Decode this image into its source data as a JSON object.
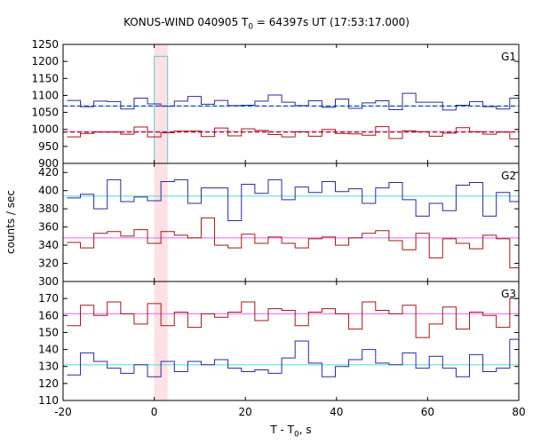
{
  "chart_data": {
    "type": "line",
    "title": {
      "prefix": "KONUS-WIND 040905 T",
      "sub": "0",
      "suffix": " = 64397s UT (17:53:17.000)"
    },
    "xlabel": {
      "prefix": "T - T",
      "sub": "0",
      "suffix": ", s"
    },
    "ylabel": "counts / sec",
    "xlim": [
      -20,
      80
    ],
    "x_ticks": [
      "-20",
      "0",
      "20",
      "40",
      "60",
      "80"
    ],
    "x_tick_values": [
      -20,
      0,
      20,
      40,
      60,
      80
    ],
    "shaded_interval": [
      0,
      2.944
    ],
    "bin_width": 2.944,
    "bin_start": -19.136,
    "colors": {
      "blue": "#2a2aa0",
      "red": "#a01818",
      "cyan": "#66dddd",
      "pink": "#f080f0",
      "shade": "#ffe0e4"
    },
    "panels": [
      {
        "label": "G1",
        "ylim": [
          900,
          1250
        ],
        "y_ticks": [
          900,
          950,
          1000,
          1050,
          1100,
          1150,
          1200,
          1250
        ],
        "y_tick_labels": [
          "900",
          "950",
          "1000",
          "1050",
          "1100",
          "1150",
          "1200",
          "1250"
        ],
        "series": [
          {
            "name": "G1 upper",
            "color": "#2a2aa0",
            "style": "step",
            "values": [
              1085,
              1067,
              1083,
              1082,
              1060,
              1092,
              1075,
              1068,
              1083,
              1097,
              1074,
              1085,
              1070,
              1071,
              1083,
              1101,
              1080,
              1070,
              1084,
              1065,
              1089,
              1062,
              1078,
              1084,
              1058,
              1106,
              1080,
              1080,
              1057,
              1071,
              1082,
              1067,
              1060,
              1092,
              1065,
              1074
            ],
            "mean": 1069,
            "mean_style": "dashed",
            "mean_color": "#2a2aa0"
          },
          {
            "name": "G1 lower",
            "color": "#a01818",
            "style": "step",
            "values": [
              978,
              988,
              992,
              992,
              986,
              1007,
              978,
              990,
              995,
              995,
              979,
              1004,
              981,
              1002,
              997,
              985,
              978,
              993,
              980,
              1000,
              988,
              987,
              983,
              1008,
              973,
              996,
              993,
              980,
              989,
              1005,
              993,
              986,
              992,
              972,
              1030,
              1040
            ],
            "mean": 992,
            "mean_style": "dashed",
            "mean_color": "#a01818"
          }
        ],
        "background_levels": [
          {
            "name": "G1 cyan",
            "value": 1068,
            "color": "#66dddd"
          },
          {
            "name": "G1 pink",
            "value": 994,
            "color": "#f080f0"
          }
        ],
        "highlight_bar": {
          "value": 1215,
          "color": "#66cccc"
        }
      },
      {
        "label": "G2",
        "ylim": [
          300,
          430
        ],
        "y_ticks": [
          300,
          320,
          340,
          360,
          380,
          400,
          420
        ],
        "y_tick_labels": [
          "300",
          "320",
          "340",
          "360",
          "380",
          "400",
          "420"
        ],
        "series": [
          {
            "name": "G2 upper",
            "color": "#2a2aa0",
            "style": "step",
            "values": [
              392,
              396,
              380,
              412,
              388,
              393,
              389,
              410,
              412,
              386,
              403,
              403,
              367,
              407,
              397,
              412,
              390,
              404,
              398,
              410,
              399,
              402,
              386,
              403,
              409,
              390,
              372,
              386,
              378,
              406,
              409,
              372,
              398,
              388,
              384,
              398
            ],
            "mean": 394,
            "mean_style": "solid",
            "mean_color": "#66dddd"
          },
          {
            "name": "G2 lower",
            "color": "#a01818",
            "style": "step",
            "values": [
              343,
              337,
              353,
              355,
              350,
              357,
              342,
              355,
              351,
              348,
              370,
              340,
              337,
              352,
              342,
              349,
              342,
              337,
              347,
              349,
              340,
              348,
              353,
              356,
              345,
              335,
              353,
              326,
              347,
              342,
              336,
              351,
              347,
              315,
              343,
              329
            ],
            "mean": 348,
            "mean_style": "solid",
            "mean_color": "#f080f0"
          }
        ]
      },
      {
        "label": "G3",
        "ylim": [
          110,
          180
        ],
        "y_ticks": [
          110,
          120,
          130,
          140,
          150,
          160,
          170,
          180
        ],
        "y_tick_labels": [
          "110",
          "120",
          "130",
          "140",
          "150",
          "160",
          "170",
          ""
        ],
        "series": [
          {
            "name": "G3 upper",
            "color": "#a01818",
            "style": "step",
            "values": [
              154,
              166,
              160,
              168,
              161,
              155,
              167,
              154,
              162,
              153,
              161,
              159,
              162,
              168,
              157,
              164,
              163,
              154,
              162,
              164,
              161,
              152,
              168,
              163,
              161,
              166,
              147,
              155,
              165,
              152,
              162,
              160,
              153,
              170,
              151,
              166
            ],
            "mean": 161,
            "mean_style": "solid",
            "mean_color": "#f080f0"
          },
          {
            "name": "G3 lower",
            "color": "#2a2aa0",
            "style": "step",
            "values": [
              125,
              138,
              133,
              129,
              126,
              131,
              124,
              133,
              127,
              133,
              131,
              134,
              129,
              127,
              128,
              126,
              135,
              145,
              132,
              124,
              130,
              134,
              140,
              132,
              131,
              138,
              129,
              136,
              129,
              124,
              137,
              127,
              129,
              146,
              130,
              131
            ],
            "mean": 131,
            "mean_style": "solid",
            "mean_color": "#66dddd"
          }
        ]
      }
    ]
  }
}
